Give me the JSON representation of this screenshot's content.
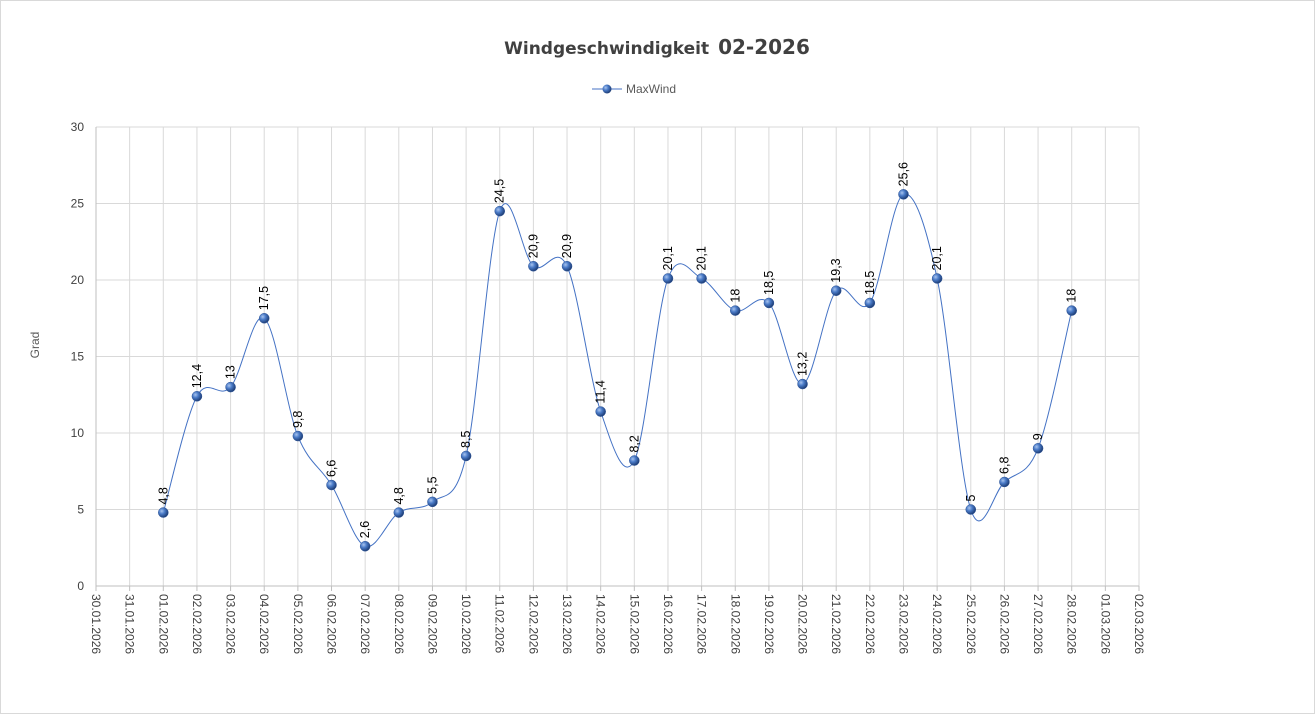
{
  "chart_data": {
    "type": "line",
    "title": "Windgeschwindigkeit",
    "title_suffix": "02-2026",
    "ylabel": "Grad",
    "xlabel": "",
    "ylim": [
      0,
      30
    ],
    "y_ticks": [
      "0",
      "5",
      "10",
      "15",
      "20",
      "25",
      "30"
    ],
    "grid": true,
    "smooth": true,
    "legend_position": "top",
    "x_ticks": [
      "30.01.2026",
      "31.01.2026",
      "01.02.2026",
      "02.02.2026",
      "03.02.2026",
      "04.02.2026",
      "05.02.2026",
      "06.02.2026",
      "07.02.2026",
      "08.02.2026",
      "09.02.2026",
      "10.02.2026",
      "11.02.2026",
      "12.02.2026",
      "13.02.2026",
      "14.02.2026",
      "15.02.2026",
      "16.02.2026",
      "17.02.2026",
      "18.02.2026",
      "19.02.2026",
      "20.02.2026",
      "21.02.2026",
      "22.02.2026",
      "23.02.2026",
      "24.02.2026",
      "25.02.2026",
      "26.02.2026",
      "27.02.2026",
      "28.02.2026",
      "01.03.2026",
      "02.03.2026"
    ],
    "series": [
      {
        "name": "MaxWind",
        "color": "#4472c4",
        "x": [
          "01.02.2026",
          "02.02.2026",
          "03.02.2026",
          "04.02.2026",
          "05.02.2026",
          "06.02.2026",
          "07.02.2026",
          "08.02.2026",
          "09.02.2026",
          "10.02.2026",
          "11.02.2026",
          "12.02.2026",
          "13.02.2026",
          "14.02.2026",
          "15.02.2026",
          "16.02.2026",
          "17.02.2026",
          "18.02.2026",
          "19.02.2026",
          "20.02.2026",
          "21.02.2026",
          "22.02.2026",
          "23.02.2026",
          "24.02.2026",
          "25.02.2026",
          "26.02.2026",
          "27.02.2026",
          "28.02.2026"
        ],
        "values": [
          4.8,
          12.4,
          13,
          17.5,
          9.8,
          6.6,
          2.6,
          4.8,
          5.5,
          8.5,
          24.5,
          20.9,
          20.9,
          11.4,
          8.2,
          20.1,
          20.1,
          18,
          18.5,
          13.2,
          19.3,
          18.5,
          25.6,
          20.1,
          5,
          6.8,
          9,
          18
        ],
        "labels": [
          "4,8",
          "12,4",
          "13",
          "17,5",
          "9,8",
          "6,6",
          "2,6",
          "4,8",
          "5,5",
          "8,5",
          "24,5",
          "20,9",
          "20,9",
          "11,4",
          "8,2",
          "20,1",
          "20,1",
          "18",
          "18,5",
          "13,2",
          "19,3",
          "18,5",
          "25,6",
          "20,1",
          "5",
          "6,8",
          "9",
          "18"
        ]
      }
    ]
  }
}
